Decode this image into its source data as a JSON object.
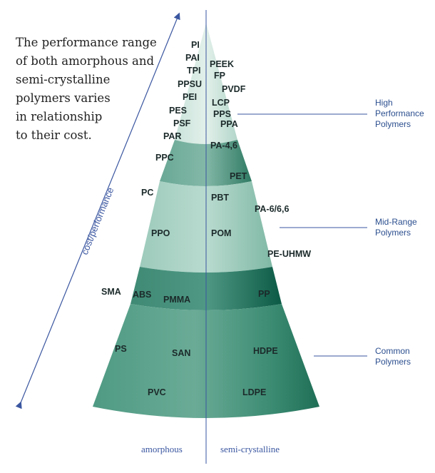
{
  "intro_lines": [
    "The performance range",
    "of both amorphous and",
    "semi-crystalline",
    "polymers varies",
    "in relationship",
    "to their cost."
  ],
  "axis": {
    "left_label": "amorphous",
    "right_label": "semi-crystalline",
    "arrow_label": "cost/performance"
  },
  "categories": [
    {
      "name": "high",
      "lines": [
        "High",
        "Performance",
        "Polymers"
      ]
    },
    {
      "name": "mid",
      "lines": [
        "Mid-Range",
        "Polymers"
      ]
    },
    {
      "name": "common",
      "lines": [
        "Common",
        "Polymers"
      ]
    }
  ],
  "polymers": {
    "PI": "PI",
    "PAI": "PAI",
    "TPI": "TPI",
    "PPSU": "PPSU",
    "PEI": "PEI",
    "PES": "PES",
    "PSF": "PSF",
    "PAR": "PAR",
    "PEEK": "PEEK",
    "FP": "FP",
    "PVDF": "PVDF",
    "LCP": "LCP",
    "PPS": "PPS",
    "PPA": "PPA",
    "PA46": "PA-4,6",
    "PPC": "PPC",
    "PET": "PET",
    "PC": "PC",
    "PBT": "PBT",
    "PA66": "PA-6/6,6",
    "PPO": "PPO",
    "POM": "POM",
    "PEUHMW": "PE-UHMW",
    "SMA": "SMA",
    "ABS": "ABS",
    "PMMA": "PMMA",
    "PP": "PP",
    "PS": "PS",
    "SAN": "SAN",
    "HDPE": "HDPE",
    "PVC": "PVC",
    "LDPE": "LDPE"
  }
}
